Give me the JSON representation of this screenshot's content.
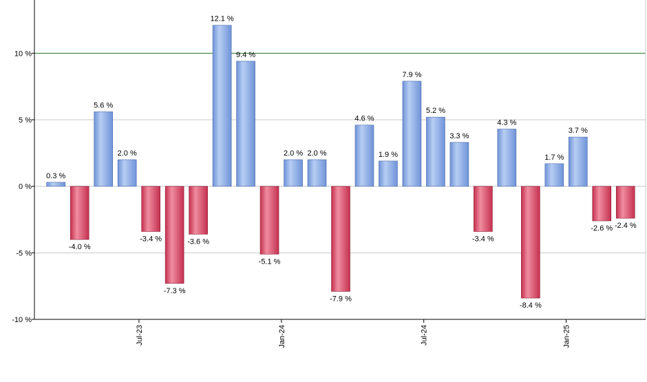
{
  "chart_data": {
    "type": "bar",
    "title": "",
    "xlabel": "",
    "ylabel": "",
    "ylim": [
      -10,
      14
    ],
    "y_ticks": [
      {
        "value": 10,
        "label": "10 %"
      },
      {
        "value": 5,
        "label": "5 %"
      },
      {
        "value": 0,
        "label": "0 %"
      },
      {
        "value": -5,
        "label": "-5 %"
      },
      {
        "value": -10,
        "label": "-10 %"
      }
    ],
    "x_tick_labels": [
      {
        "label": "Jul-23",
        "after_bar": 3
      },
      {
        "label": "Jan-24",
        "after_bar": 9
      },
      {
        "label": "Jul-24",
        "after_bar": 15
      },
      {
        "label": "Jan-25",
        "after_bar": 21
      }
    ],
    "reference_line": 10,
    "grid": true,
    "values": [
      0.3,
      -4.0,
      5.6,
      2.0,
      -3.4,
      -7.3,
      -3.6,
      12.1,
      9.4,
      -5.1,
      2.0,
      2.0,
      -7.9,
      4.6,
      1.9,
      7.9,
      5.2,
      3.3,
      -3.4,
      4.3,
      -8.4,
      1.7,
      3.7,
      -2.6,
      -2.4
    ],
    "data_labels": [
      "0.3 %",
      "-4.0 %",
      "5.6 %",
      "2.0 %",
      "-3.4 %",
      "-7.3 %",
      "-3.6 %",
      "12.1 %",
      "9.4 %",
      "-5.1 %",
      "2.0 %",
      "2.0 %",
      "-7.9 %",
      "4.6 %",
      "1.9 %",
      "7.9 %",
      "5.2 %",
      "3.3 %",
      "-3.4 %",
      "4.3 %",
      "-8.4 %",
      "1.7 %",
      "3.7 %",
      "-2.6 %",
      "-2.4 %"
    ],
    "colors": {
      "positive": "#6f93d8",
      "positive_light": "#b7cdf3",
      "negative": "#c4304f",
      "negative_light": "#f08da0",
      "reference_line": "#2e7d32",
      "grid": "#c8c8c8",
      "axis": "#000000"
    }
  }
}
